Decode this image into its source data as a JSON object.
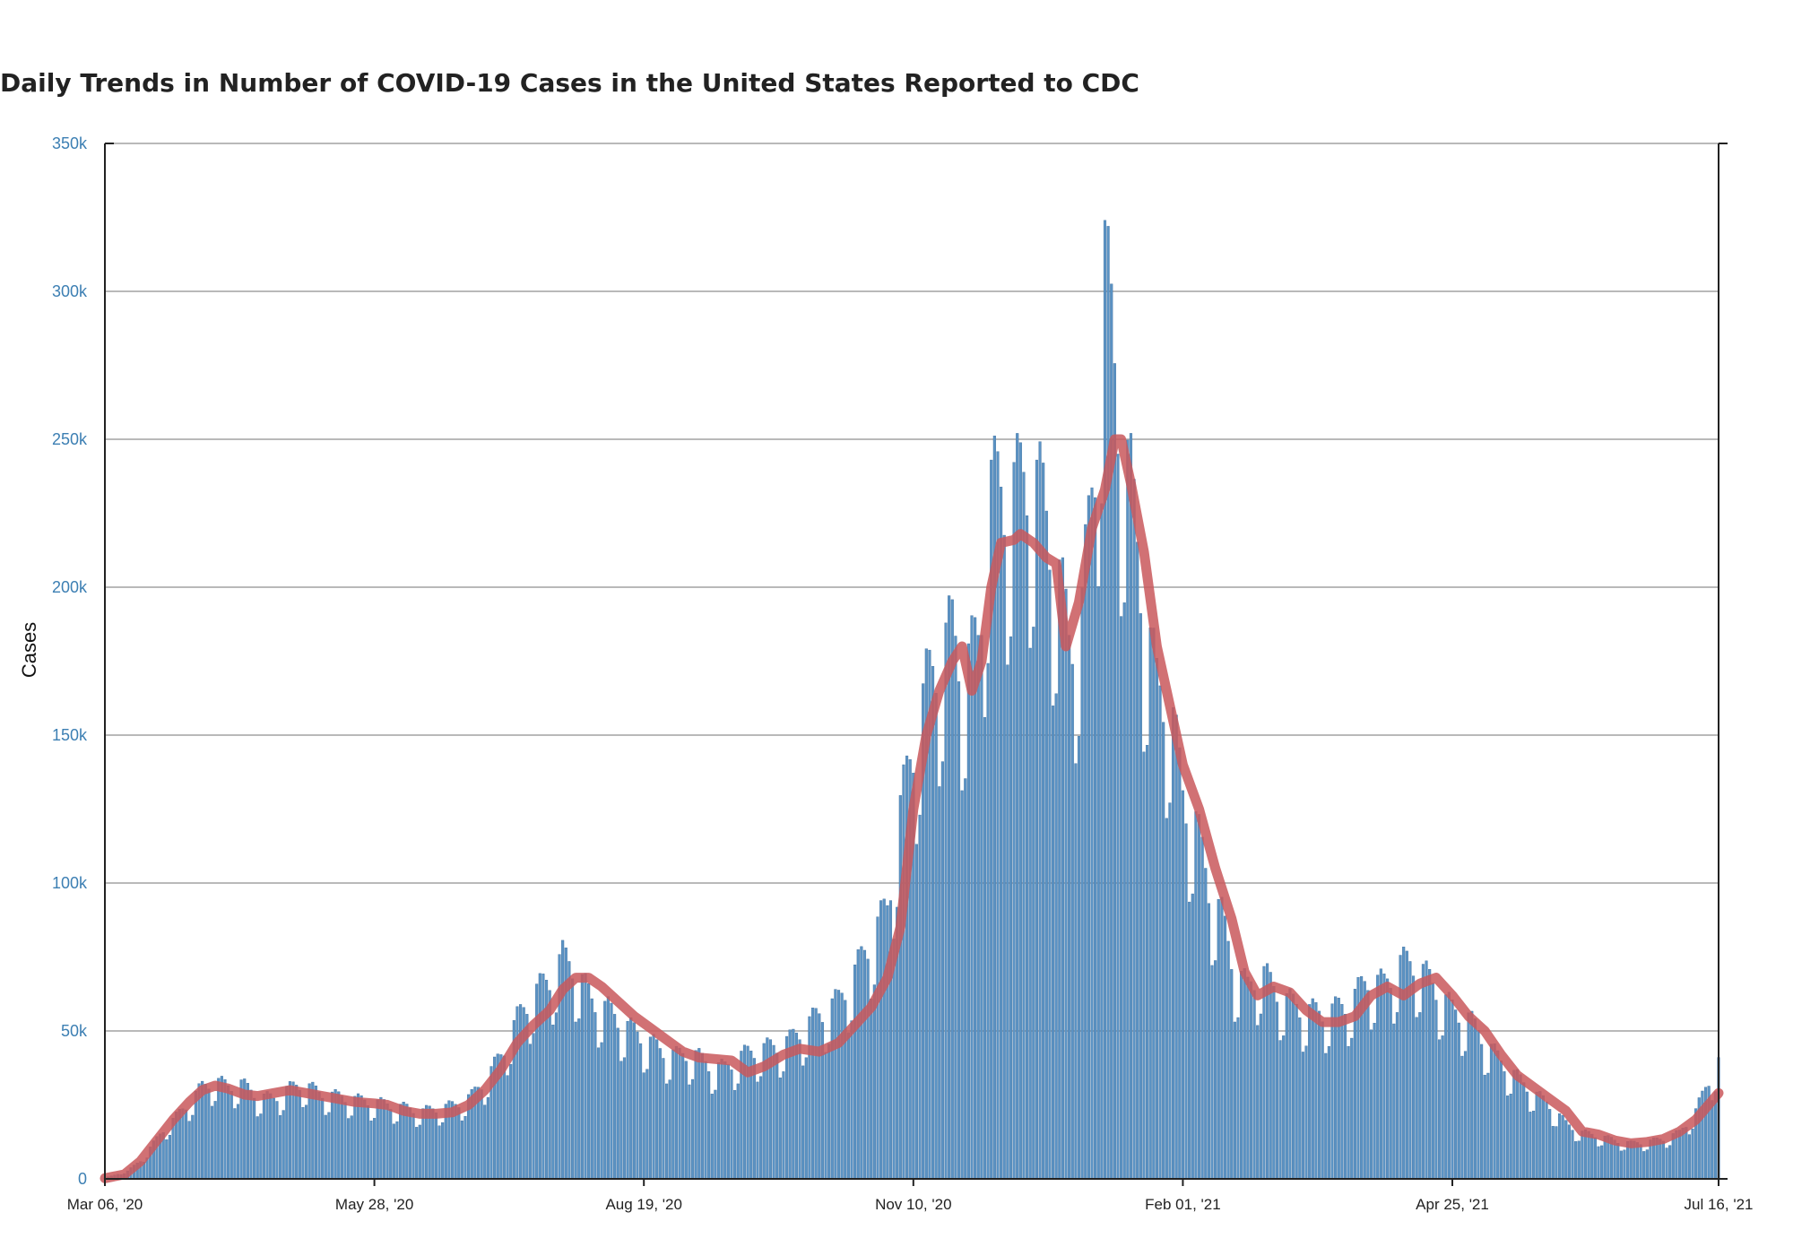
{
  "chart_data": {
    "type": "bar",
    "title": "Daily Trends in Number of COVID-19 Cases in the United States Reported to CDC",
    "ylabel": "Cases",
    "xlabel": "",
    "ylim": [
      0,
      350000
    ],
    "grid": true,
    "x_range": [
      "2020-03-06",
      "2021-07-16"
    ],
    "y_ticks": [
      {
        "value": 0,
        "label": "0"
      },
      {
        "value": 50000,
        "label": "50k"
      },
      {
        "value": 100000,
        "label": "100k"
      },
      {
        "value": 150000,
        "label": "150k"
      },
      {
        "value": 200000,
        "label": "200k"
      },
      {
        "value": 250000,
        "label": "250k"
      },
      {
        "value": 300000,
        "label": "300k"
      },
      {
        "value": 350000,
        "label": "350k"
      }
    ],
    "x_ticks": [
      {
        "date": "2020-03-06",
        "label": "Mar 06, '20"
      },
      {
        "date": "2020-05-28",
        "label": "May 28, '20"
      },
      {
        "date": "2020-08-19",
        "label": "Aug 19, '20"
      },
      {
        "date": "2020-11-10",
        "label": "Nov 10, '20"
      },
      {
        "date": "2021-02-01",
        "label": "Feb 01, '21"
      },
      {
        "date": "2021-04-25",
        "label": "Apr 25, '21"
      },
      {
        "date": "2021-07-16",
        "label": "Jul 16, '21"
      }
    ],
    "series": [
      {
        "type": "bar",
        "color": "#5b93c4",
        "points": [
          [
            "2020-03-06",
            300
          ],
          [
            "2020-03-13",
            2500
          ],
          [
            "2020-03-17",
            6000
          ],
          [
            "2020-03-20",
            10000
          ],
          [
            "2020-03-24",
            16000
          ],
          [
            "2020-03-27",
            19000
          ],
          [
            "2020-04-01",
            25000
          ],
          [
            "2020-04-05",
            30000
          ],
          [
            "2020-04-09",
            32000
          ],
          [
            "2020-04-13",
            30000
          ],
          [
            "2020-04-17",
            31000
          ],
          [
            "2020-04-22",
            27000
          ],
          [
            "2020-04-27",
            26000
          ],
          [
            "2020-05-01",
            29000
          ],
          [
            "2020-05-06",
            31000
          ],
          [
            "2020-05-11",
            28000
          ],
          [
            "2020-05-16",
            27000
          ],
          [
            "2020-05-21",
            26000
          ],
          [
            "2020-05-28",
            25000
          ],
          [
            "2020-06-02",
            24000
          ],
          [
            "2020-06-07",
            23000
          ],
          [
            "2020-06-12",
            22000
          ],
          [
            "2020-06-17",
            23000
          ],
          [
            "2020-06-22",
            24000
          ],
          [
            "2020-06-27",
            27000
          ],
          [
            "2020-07-01",
            32000
          ],
          [
            "2020-07-06",
            40000
          ],
          [
            "2020-07-11",
            52000
          ],
          [
            "2020-07-16",
            60000
          ],
          [
            "2020-07-21",
            65000
          ],
          [
            "2020-07-25",
            72000
          ],
          [
            "2020-07-29",
            68000
          ],
          [
            "2020-08-03",
            58000
          ],
          [
            "2020-08-08",
            55000
          ],
          [
            "2020-08-13",
            50000
          ],
          [
            "2020-08-19",
            46000
          ],
          [
            "2020-08-24",
            42000
          ],
          [
            "2020-08-29",
            40000
          ],
          [
            "2020-09-03",
            41000
          ],
          [
            "2020-09-08",
            37000
          ],
          [
            "2020-09-13",
            36000
          ],
          [
            "2020-09-18",
            40000
          ],
          [
            "2020-09-23",
            42000
          ],
          [
            "2020-09-28",
            43000
          ],
          [
            "2020-10-03",
            45000
          ],
          [
            "2020-10-08",
            50000
          ],
          [
            "2020-10-13",
            54000
          ],
          [
            "2020-10-18",
            58000
          ],
          [
            "2020-10-23",
            67000
          ],
          [
            "2020-10-28",
            78000
          ],
          [
            "2020-11-02",
            88000
          ],
          [
            "2020-11-06",
            120000
          ],
          [
            "2020-11-10",
            140000
          ],
          [
            "2020-11-14",
            160000
          ],
          [
            "2020-11-18",
            170000
          ],
          [
            "2020-11-22",
            178000
          ],
          [
            "2020-11-26",
            165000
          ],
          [
            "2020-11-30",
            175000
          ],
          [
            "2020-12-04",
            225000
          ],
          [
            "2020-12-08",
            222000
          ],
          [
            "2020-12-12",
            225000
          ],
          [
            "2020-12-16",
            230000
          ],
          [
            "2020-12-20",
            220000
          ],
          [
            "2020-12-24",
            200000
          ],
          [
            "2020-12-28",
            175000
          ],
          [
            "2021-01-01",
            185000
          ],
          [
            "2021-01-05",
            235000
          ],
          [
            "2021-01-08",
            300000
          ],
          [
            "2021-01-12",
            250000
          ],
          [
            "2021-01-16",
            225000
          ],
          [
            "2021-01-20",
            185000
          ],
          [
            "2021-01-24",
            160000
          ],
          [
            "2021-01-28",
            155000
          ],
          [
            "2021-02-01",
            125000
          ],
          [
            "2021-02-05",
            115000
          ],
          [
            "2021-02-09",
            95000
          ],
          [
            "2021-02-13",
            85000
          ],
          [
            "2021-02-17",
            68000
          ],
          [
            "2021-02-21",
            62000
          ],
          [
            "2021-02-25",
            68000
          ],
          [
            "2021-03-01",
            62000
          ],
          [
            "2021-03-05",
            58000
          ],
          [
            "2021-03-10",
            55000
          ],
          [
            "2021-03-15",
            54000
          ],
          [
            "2021-03-20",
            55000
          ],
          [
            "2021-03-25",
            58000
          ],
          [
            "2021-03-30",
            65000
          ],
          [
            "2021-04-04",
            63000
          ],
          [
            "2021-04-09",
            70000
          ],
          [
            "2021-04-14",
            70000
          ],
          [
            "2021-04-19",
            63000
          ],
          [
            "2021-04-25",
            55000
          ],
          [
            "2021-04-30",
            52000
          ],
          [
            "2021-05-05",
            45000
          ],
          [
            "2021-05-10",
            38000
          ],
          [
            "2021-05-15",
            33000
          ],
          [
            "2021-05-20",
            28000
          ],
          [
            "2021-05-25",
            24000
          ],
          [
            "2021-05-30",
            18000
          ],
          [
            "2021-06-04",
            15000
          ],
          [
            "2021-06-09",
            14000
          ],
          [
            "2021-06-14",
            12500
          ],
          [
            "2021-06-19",
            11500
          ],
          [
            "2021-06-24",
            12000
          ],
          [
            "2021-06-29",
            13000
          ],
          [
            "2021-07-04",
            15000
          ],
          [
            "2021-07-09",
            22000
          ],
          [
            "2021-07-13",
            32000
          ],
          [
            "2021-07-16",
            38000
          ]
        ]
      },
      {
        "type": "line",
        "color": "#c9585c",
        "points": [
          [
            "2020-03-06",
            200
          ],
          [
            "2020-03-12",
            1500
          ],
          [
            "2020-03-17",
            6000
          ],
          [
            "2020-03-22",
            13000
          ],
          [
            "2020-03-27",
            20000
          ],
          [
            "2020-04-01",
            26000
          ],
          [
            "2020-04-05",
            30000
          ],
          [
            "2020-04-09",
            31500
          ],
          [
            "2020-04-13",
            30500
          ],
          [
            "2020-04-18",
            28500
          ],
          [
            "2020-04-22",
            28000
          ],
          [
            "2020-04-27",
            29000
          ],
          [
            "2020-05-02",
            30000
          ],
          [
            "2020-05-07",
            29000
          ],
          [
            "2020-05-12",
            28000
          ],
          [
            "2020-05-17",
            27000
          ],
          [
            "2020-05-22",
            26000
          ],
          [
            "2020-05-28",
            25500
          ],
          [
            "2020-06-01",
            25000
          ],
          [
            "2020-06-06",
            23000
          ],
          [
            "2020-06-11",
            22000
          ],
          [
            "2020-06-16",
            22000
          ],
          [
            "2020-06-21",
            22500
          ],
          [
            "2020-06-26",
            25000
          ],
          [
            "2020-07-01",
            30000
          ],
          [
            "2020-07-06",
            37000
          ],
          [
            "2020-07-11",
            46000
          ],
          [
            "2020-07-16",
            52000
          ],
          [
            "2020-07-21",
            57000
          ],
          [
            "2020-07-25",
            64000
          ],
          [
            "2020-07-29",
            68000
          ],
          [
            "2020-08-02",
            68000
          ],
          [
            "2020-08-06",
            65000
          ],
          [
            "2020-08-11",
            60000
          ],
          [
            "2020-08-16",
            55000
          ],
          [
            "2020-08-21",
            51000
          ],
          [
            "2020-08-26",
            47000
          ],
          [
            "2020-08-31",
            43000
          ],
          [
            "2020-09-05",
            41000
          ],
          [
            "2020-09-10",
            40500
          ],
          [
            "2020-09-15",
            40000
          ],
          [
            "2020-09-20",
            36000
          ],
          [
            "2020-09-25",
            38000
          ],
          [
            "2020-10-01",
            42000
          ],
          [
            "2020-10-06",
            44000
          ],
          [
            "2020-10-12",
            43000
          ],
          [
            "2020-10-18",
            46000
          ],
          [
            "2020-10-23",
            52000
          ],
          [
            "2020-10-28",
            58000
          ],
          [
            "2020-11-02",
            68000
          ],
          [
            "2020-11-06",
            85000
          ],
          [
            "2020-11-10",
            125000
          ],
          [
            "2020-11-14",
            150000
          ],
          [
            "2020-11-18",
            165000
          ],
          [
            "2020-11-22",
            175000
          ],
          [
            "2020-11-25",
            180000
          ],
          [
            "2020-11-28",
            165000
          ],
          [
            "2020-12-01",
            175000
          ],
          [
            "2020-12-04",
            200000
          ],
          [
            "2020-12-07",
            215000
          ],
          [
            "2020-12-11",
            216000
          ],
          [
            "2020-12-13",
            218000
          ],
          [
            "2020-12-17",
            215000
          ],
          [
            "2020-12-21",
            210000
          ],
          [
            "2020-12-24",
            208000
          ],
          [
            "2020-12-27",
            180000
          ],
          [
            "2020-12-31",
            195000
          ],
          [
            "2021-01-04",
            220000
          ],
          [
            "2021-01-08",
            233000
          ],
          [
            "2021-01-11",
            250000
          ],
          [
            "2021-01-13",
            250000
          ],
          [
            "2021-01-16",
            235000
          ],
          [
            "2021-01-20",
            212000
          ],
          [
            "2021-01-24",
            180000
          ],
          [
            "2021-01-28",
            160000
          ],
          [
            "2021-02-01",
            140000
          ],
          [
            "2021-02-06",
            125000
          ],
          [
            "2021-02-11",
            105000
          ],
          [
            "2021-02-16",
            88000
          ],
          [
            "2021-02-20",
            70000
          ],
          [
            "2021-02-24",
            62000
          ],
          [
            "2021-03-01",
            65000
          ],
          [
            "2021-03-06",
            63000
          ],
          [
            "2021-03-11",
            57000
          ],
          [
            "2021-03-16",
            53000
          ],
          [
            "2021-03-21",
            53000
          ],
          [
            "2021-03-26",
            55000
          ],
          [
            "2021-03-31",
            62000
          ],
          [
            "2021-04-05",
            65000
          ],
          [
            "2021-04-10",
            62000
          ],
          [
            "2021-04-15",
            66000
          ],
          [
            "2021-04-20",
            68000
          ],
          [
            "2021-04-25",
            62000
          ],
          [
            "2021-04-30",
            55000
          ],
          [
            "2021-05-05",
            50000
          ],
          [
            "2021-05-10",
            42000
          ],
          [
            "2021-05-15",
            35000
          ],
          [
            "2021-05-20",
            31000
          ],
          [
            "2021-05-25",
            27000
          ],
          [
            "2021-05-30",
            23000
          ],
          [
            "2021-06-04",
            16000
          ],
          [
            "2021-06-09",
            15000
          ],
          [
            "2021-06-14",
            13000
          ],
          [
            "2021-06-19",
            12000
          ],
          [
            "2021-06-24",
            12500
          ],
          [
            "2021-06-29",
            13500
          ],
          [
            "2021-07-04",
            16000
          ],
          [
            "2021-07-09",
            20000
          ],
          [
            "2021-07-16",
            29000
          ]
        ]
      }
    ]
  }
}
